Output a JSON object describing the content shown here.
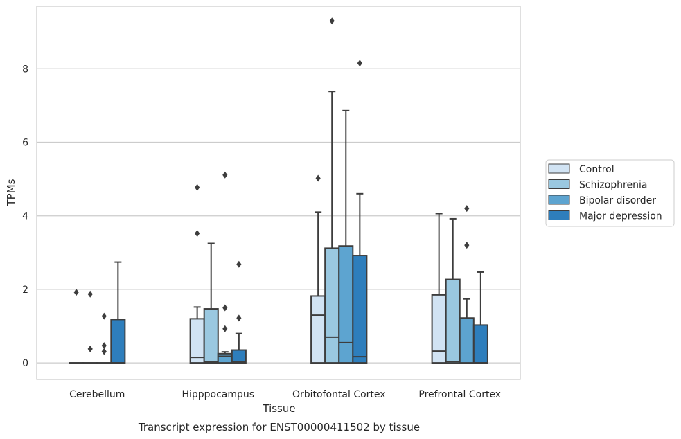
{
  "chart_data": {
    "type": "box",
    "title": "Transcript expression for ENST00000411502 by tissue",
    "xlabel": "Tissue",
    "ylabel": "TPMs",
    "ylim": [
      -0.45,
      9.7
    ],
    "yticks": [
      0,
      2,
      4,
      6,
      8
    ],
    "ytick_labels": [
      "0",
      "2",
      "4",
      "6",
      "8"
    ],
    "grid": true,
    "legend_position": "right",
    "categories": [
      "Cerebellum",
      "Hipppocampus",
      "Orbitofontal Cortex",
      "Prefrontal Cortex"
    ],
    "series": [
      {
        "name": "Control",
        "color": "#d1e3f3",
        "boxes": [
          {
            "whisker_low": 0,
            "q1": 0,
            "median": 0,
            "q3": 0,
            "whisker_high": 0,
            "outliers": [
              1.92
            ]
          },
          {
            "whisker_low": 0,
            "q1": 0,
            "median": 0.15,
            "q3": 1.2,
            "whisker_high": 1.52,
            "outliers": [
              3.52,
              4.77
            ]
          },
          {
            "whisker_low": 0,
            "q1": 0,
            "median": 1.3,
            "q3": 1.82,
            "whisker_high": 4.1,
            "outliers": [
              5.02
            ]
          },
          {
            "whisker_low": 0,
            "q1": 0,
            "median": 0.32,
            "q3": 1.85,
            "whisker_high": 4.06,
            "outliers": []
          }
        ]
      },
      {
        "name": "Schizophrenia",
        "color": "#9ac8e0",
        "boxes": [
          {
            "whisker_low": 0,
            "q1": 0,
            "median": 0,
            "q3": 0,
            "whisker_high": 0,
            "outliers": [
              0.38,
              1.87
            ]
          },
          {
            "whisker_low": 0,
            "q1": 0,
            "median": 0.02,
            "q3": 1.47,
            "whisker_high": 3.25,
            "outliers": []
          },
          {
            "whisker_low": 0,
            "q1": 0,
            "median": 0.7,
            "q3": 3.12,
            "whisker_high": 7.38,
            "outliers": [
              9.3
            ]
          },
          {
            "whisker_low": 0,
            "q1": 0,
            "median": 0.04,
            "q3": 2.27,
            "whisker_high": 3.92,
            "outliers": []
          }
        ]
      },
      {
        "name": "Bipolar disorder",
        "color": "#5da4d0",
        "boxes": [
          {
            "whisker_low": 0,
            "q1": 0,
            "median": 0,
            "q3": 0,
            "whisker_high": 0,
            "outliers": [
              0.31,
              0.47,
              1.27
            ]
          },
          {
            "whisker_low": 0,
            "q1": 0,
            "median": 0.18,
            "q3": 0.25,
            "whisker_high": 0.3,
            "outliers": [
              0.93,
              1.5,
              5.11
            ]
          },
          {
            "whisker_low": 0,
            "q1": 0,
            "median": 0.55,
            "q3": 3.18,
            "whisker_high": 6.86,
            "outliers": []
          },
          {
            "whisker_low": 0,
            "q1": 0,
            "median": 1.22,
            "q3": 1.22,
            "whisker_high": 1.74,
            "outliers": [
              3.2,
              4.2
            ]
          }
        ]
      },
      {
        "name": "Major depression",
        "color": "#2e7ebc",
        "boxes": [
          {
            "whisker_low": 0,
            "q1": 0,
            "median": 0,
            "q3": 1.18,
            "whisker_high": 2.74,
            "outliers": []
          },
          {
            "whisker_low": 0,
            "q1": 0,
            "median": 0.02,
            "q3": 0.35,
            "whisker_high": 0.8,
            "outliers": [
              1.22,
              2.68
            ]
          },
          {
            "whisker_low": 0,
            "q1": 0,
            "median": 0.17,
            "q3": 2.92,
            "whisker_high": 4.6,
            "outliers": [
              8.15
            ]
          },
          {
            "whisker_low": 0,
            "q1": 0,
            "median": 0,
            "q3": 1.03,
            "whisker_high": 2.47,
            "outliers": []
          }
        ]
      }
    ]
  }
}
